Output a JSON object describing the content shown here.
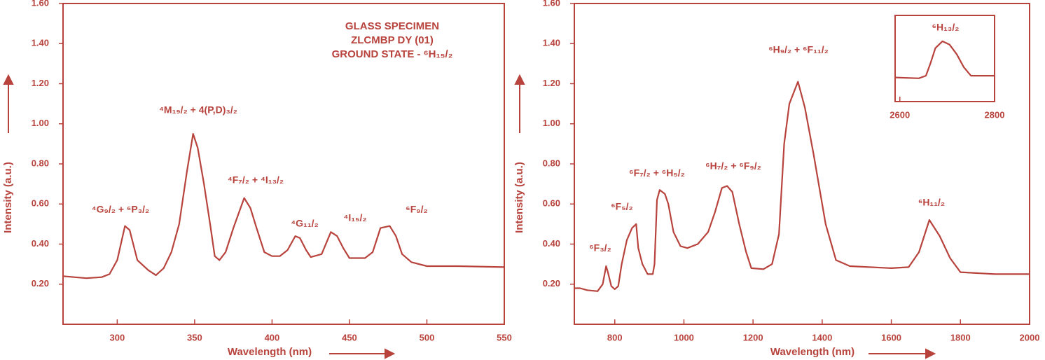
{
  "chart_data": [
    {
      "type": "line",
      "title": [
        "GLASS SPECIMEN",
        "ZLCMBP DY (01)",
        "GROUND STATE - ⁶H₁₅/₂"
      ],
      "x_label": "Wavelength (nm)",
      "y_label": "Intensity (a.u.)",
      "annotations": [
        "⁴G₉/₂ + ⁶P₃/₂",
        "⁴M₁₉/₂ + 4(P,D)₃/₂",
        "⁴F₇/₂ + ⁴I₁₃/₂",
        "⁴G₁₁/₂",
        "⁴I₁₅/₂",
        "⁶F₉/₂"
      ],
      "color": "#b8433d",
      "x": [
        265,
        280,
        290,
        295,
        300,
        305,
        308,
        313,
        320,
        325,
        330,
        335,
        340,
        345,
        349,
        352,
        356,
        360,
        363,
        366,
        370,
        375,
        382,
        386,
        390,
        395,
        400,
        405,
        410,
        415,
        418,
        422,
        425,
        432,
        438,
        442,
        446,
        450,
        460,
        465,
        470,
        476,
        480,
        484,
        490,
        500,
        520,
        550
      ],
      "values": [
        0.24,
        0.23,
        0.235,
        0.25,
        0.32,
        0.49,
        0.47,
        0.32,
        0.27,
        0.245,
        0.28,
        0.36,
        0.5,
        0.76,
        0.95,
        0.88,
        0.7,
        0.5,
        0.34,
        0.32,
        0.36,
        0.48,
        0.63,
        0.58,
        0.48,
        0.36,
        0.34,
        0.34,
        0.37,
        0.44,
        0.43,
        0.37,
        0.335,
        0.35,
        0.46,
        0.44,
        0.38,
        0.33,
        0.33,
        0.36,
        0.48,
        0.49,
        0.44,
        0.35,
        0.31,
        0.29,
        0.29,
        0.285
      ],
      "xlim": [
        265,
        550
      ],
      "xticks": [
        300,
        350,
        400,
        450,
        500,
        550
      ],
      "ylim": [
        0,
        1.6
      ],
      "yticks": [
        {
          "value": 0.2,
          "label": "0.20"
        },
        {
          "value": 0.4,
          "label": "0.40"
        },
        {
          "value": 0.6,
          "label": "0.60"
        },
        {
          "value": 0.8,
          "label": "0.80"
        },
        {
          "value": 1.0,
          "label": "1.00"
        },
        {
          "value": 1.2,
          "label": "1.20"
        },
        {
          "value": 1.4,
          "label": "1.40"
        },
        {
          "value": 1.6,
          "label": "1.60"
        }
      ]
    },
    {
      "type": "line",
      "x_label": "Wavelength (nm)",
      "y_label": "Intensity (a.u.)",
      "annotations": [
        "⁶F₃/₂",
        "⁶F₅/₂",
        "⁶F₇/₂ + ⁶H₅/₂",
        "⁶H₇/₂ + ⁶F₉/₂",
        "⁶H₉/₂ + ⁶F₁₁/₂",
        "⁶H₁₁/₂"
      ],
      "color": "#b8433d",
      "x": [
        683,
        700,
        720,
        750,
        765,
        775,
        780,
        790,
        800,
        810,
        820,
        835,
        850,
        862,
        868,
        880,
        895,
        910,
        915,
        922,
        930,
        945,
        955,
        970,
        990,
        1010,
        1040,
        1070,
        1090,
        1110,
        1125,
        1140,
        1160,
        1180,
        1195,
        1230,
        1255,
        1275,
        1290,
        1305,
        1330,
        1350,
        1375,
        1410,
        1440,
        1480,
        1600,
        1650,
        1680,
        1710,
        1740,
        1770,
        1800,
        1900,
        2000
      ],
      "values": [
        0.18,
        0.18,
        0.17,
        0.165,
        0.2,
        0.29,
        0.26,
        0.19,
        0.175,
        0.19,
        0.3,
        0.42,
        0.48,
        0.5,
        0.38,
        0.3,
        0.25,
        0.25,
        0.3,
        0.62,
        0.67,
        0.65,
        0.6,
        0.46,
        0.39,
        0.38,
        0.4,
        0.46,
        0.56,
        0.68,
        0.69,
        0.66,
        0.5,
        0.36,
        0.28,
        0.275,
        0.3,
        0.45,
        0.9,
        1.1,
        1.21,
        1.08,
        0.85,
        0.5,
        0.32,
        0.29,
        0.28,
        0.285,
        0.36,
        0.52,
        0.44,
        0.33,
        0.26,
        0.25,
        0.25
      ],
      "xlim": [
        683,
        2000
      ],
      "xticks": [
        800,
        1000,
        1200,
        1400,
        1600,
        1800,
        2000
      ],
      "ylim": [
        0,
        1.6
      ],
      "yticks": [
        {
          "value": 0.2,
          "label": "0.20"
        },
        {
          "value": 0.4,
          "label": "0.40"
        },
        {
          "value": 0.6,
          "label": "0.60"
        },
        {
          "value": 0.8,
          "label": "0.80"
        },
        {
          "value": 1.0,
          "label": "1.00"
        },
        {
          "value": 1.2,
          "label": "1.20"
        },
        {
          "value": 1.4,
          "label": "1.40"
        },
        {
          "value": 1.6,
          "label": "1.60"
        }
      ]
    },
    {
      "type": "line",
      "annotations": [
        "⁶H₁₃/₂"
      ],
      "color": "#b8433d",
      "x": [
        2590,
        2640,
        2655,
        2665,
        2675,
        2690,
        2705,
        2720,
        2735,
        2750,
        2770,
        2800
      ],
      "values": [
        0.28,
        0.27,
        0.3,
        0.45,
        0.62,
        0.7,
        0.66,
        0.55,
        0.4,
        0.3,
        0.3,
        0.3
      ],
      "xlim": [
        2590,
        2800
      ],
      "xticks": [
        2600,
        2800
      ],
      "ylim": [
        0,
        1
      ]
    }
  ]
}
